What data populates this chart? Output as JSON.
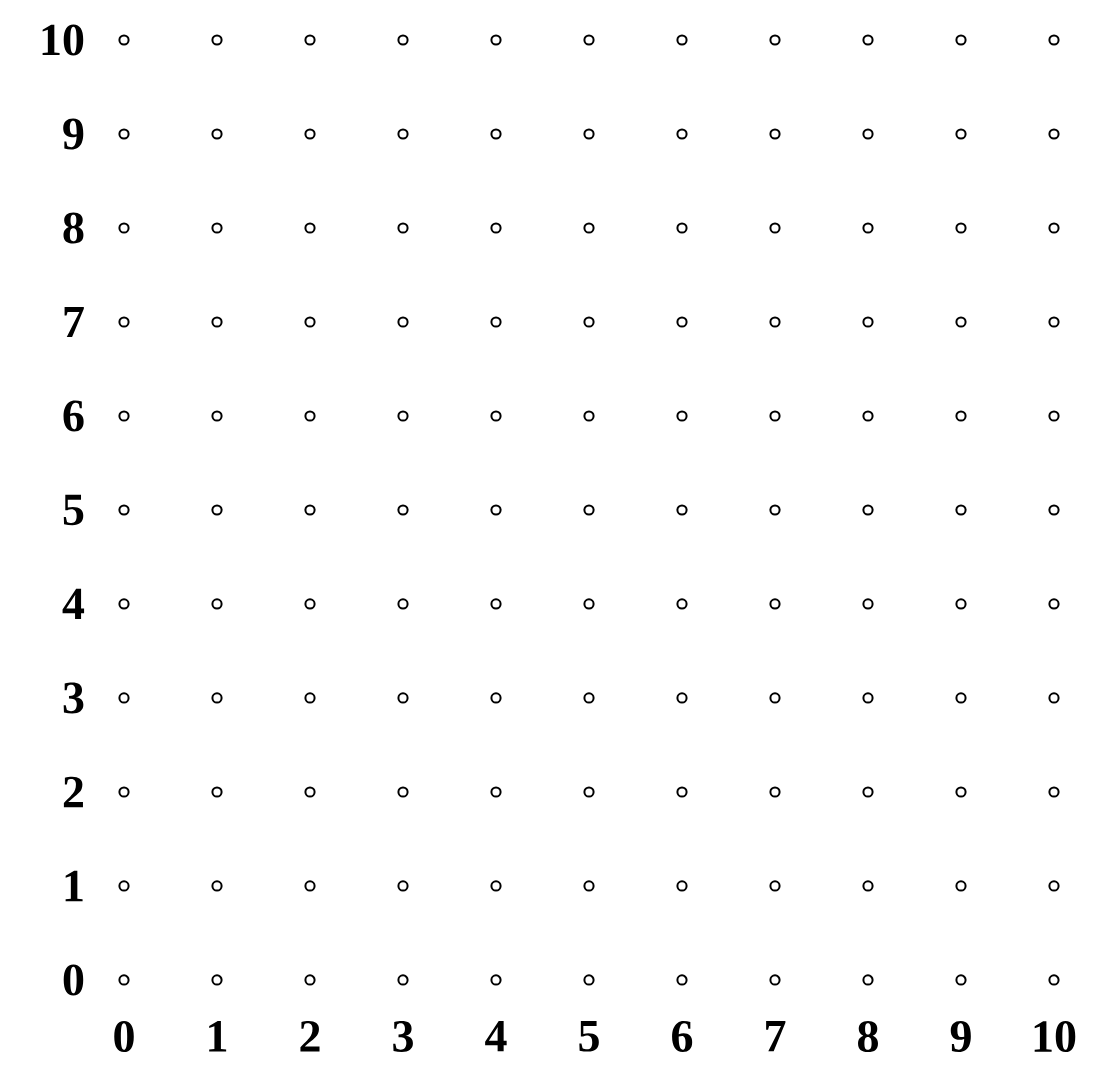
{
  "chart_data": {
    "type": "scatter",
    "x": [
      0,
      1,
      2,
      3,
      4,
      5,
      6,
      7,
      8,
      9,
      10,
      0,
      1,
      2,
      3,
      4,
      5,
      6,
      7,
      8,
      9,
      10,
      0,
      1,
      2,
      3,
      4,
      5,
      6,
      7,
      8,
      9,
      10,
      0,
      1,
      2,
      3,
      4,
      5,
      6,
      7,
      8,
      9,
      10,
      0,
      1,
      2,
      3,
      4,
      5,
      6,
      7,
      8,
      9,
      10,
      0,
      1,
      2,
      3,
      4,
      5,
      6,
      7,
      8,
      9,
      10,
      0,
      1,
      2,
      3,
      4,
      5,
      6,
      7,
      8,
      9,
      10,
      0,
      1,
      2,
      3,
      4,
      5,
      6,
      7,
      8,
      9,
      10,
      0,
      1,
      2,
      3,
      4,
      5,
      6,
      7,
      8,
      9,
      10,
      0,
      1,
      2,
      3,
      4,
      5,
      6,
      7,
      8,
      9,
      10,
      0,
      1,
      2,
      3,
      4,
      5,
      6,
      7,
      8,
      9,
      10
    ],
    "values": [
      0,
      0,
      0,
      0,
      0,
      0,
      0,
      0,
      0,
      0,
      0,
      1,
      1,
      1,
      1,
      1,
      1,
      1,
      1,
      1,
      1,
      1,
      2,
      2,
      2,
      2,
      2,
      2,
      2,
      2,
      2,
      2,
      2,
      3,
      3,
      3,
      3,
      3,
      3,
      3,
      3,
      3,
      3,
      3,
      4,
      4,
      4,
      4,
      4,
      4,
      4,
      4,
      4,
      4,
      4,
      5,
      5,
      5,
      5,
      5,
      5,
      5,
      5,
      5,
      5,
      5,
      6,
      6,
      6,
      6,
      6,
      6,
      6,
      6,
      6,
      6,
      6,
      7,
      7,
      7,
      7,
      7,
      7,
      7,
      7,
      7,
      7,
      7,
      8,
      8,
      8,
      8,
      8,
      8,
      8,
      8,
      8,
      8,
      8,
      9,
      9,
      9,
      9,
      9,
      9,
      9,
      9,
      9,
      9,
      9,
      10,
      10,
      10,
      10,
      10,
      10,
      10,
      10,
      10,
      10,
      10
    ],
    "color": "#000000",
    "marker": "circle",
    "xlim": [
      0,
      10
    ],
    "ylim": [
      0,
      10
    ],
    "xticks": [
      0,
      1,
      2,
      3,
      4,
      5,
      6,
      7,
      8,
      9,
      10
    ],
    "yticks": [
      0,
      1,
      2,
      3,
      4,
      5,
      6,
      7,
      8,
      9,
      10
    ],
    "grid": false
  }
}
